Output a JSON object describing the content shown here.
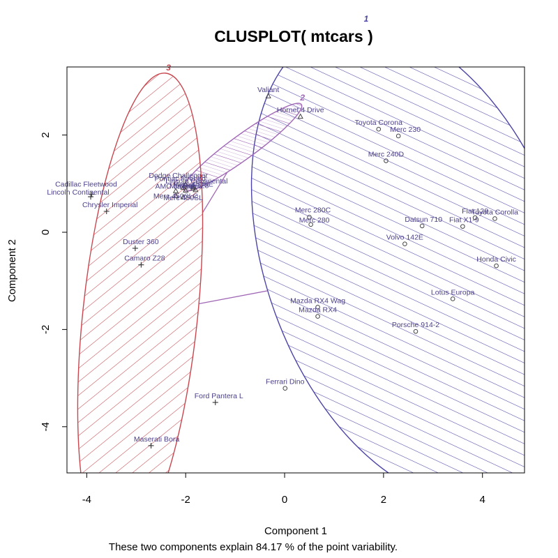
{
  "chart_data": {
    "type": "scatter",
    "title": "CLUSPLOT( mtcars )",
    "xlabel": "Component 1",
    "ylabel": "Component 2",
    "subtitle": "These two components explain 84.17 % of the point variability.",
    "xlim": [
      -4.4,
      4.85
    ],
    "ylim": [
      -4.95,
      3.4
    ],
    "xticks": [
      "-4",
      "-2",
      "0",
      "2",
      "4"
    ],
    "yticks": [
      "-4",
      "-2",
      "0",
      "2"
    ],
    "cluster_colors": {
      "1": "#4b44a6",
      "2": "#a067b6",
      "3": "#c8464e"
    },
    "clusters": [
      {
        "id": "1",
        "label": "1",
        "marker": "circle",
        "cx": 2.63,
        "cy": -0.63,
        "rx": 3.0,
        "ry": 5.1,
        "angle_deg": 20,
        "hatch_angle_deg": 45,
        "fill": false
      },
      {
        "id": "2",
        "label": "2",
        "marker": "triangle",
        "cx": -0.85,
        "cy": 1.75,
        "rx": 1.47,
        "ry": 0.25,
        "angle_deg": 36,
        "hatch_angle_deg": 36,
        "fill": true
      },
      {
        "id": "3",
        "label": "3",
        "marker": "plus",
        "cx": -2.92,
        "cy": -1.7,
        "rx": 1.16,
        "ry": 5.0,
        "angle_deg": -6,
        "hatch_angle_deg": -45,
        "fill": false
      }
    ],
    "connections": [
      {
        "from": "1",
        "to": "2"
      },
      {
        "from": "1",
        "to": "3"
      },
      {
        "from": "2",
        "to": "3"
      }
    ],
    "points": [
      {
        "label": "Valiant",
        "x": -0.33,
        "y": 2.8,
        "cluster": "2",
        "dx": 0,
        "dy": -6,
        "anchor": "middle"
      },
      {
        "label": "Hornet 4 Drive",
        "x": 0.32,
        "y": 2.38,
        "cluster": "2",
        "dx": 0,
        "dy": -6,
        "anchor": "middle"
      },
      {
        "label": "Dodge Challenger",
        "x": -2.05,
        "y": 0.92,
        "cluster": "2",
        "dx": -7,
        "dy": -14,
        "anchor": "middle"
      },
      {
        "label": "Pontiac Firebird",
        "x": -2.0,
        "y": 0.98,
        "cluster": "2",
        "dx": -8,
        "dy": -5,
        "anchor": "middle"
      },
      {
        "label": "Lincoln Continental",
        "x": -1.85,
        "y": 0.93,
        "cluster": "2",
        "dx": 5,
        "dy": -5,
        "anchor": "middle"
      },
      {
        "label": "AMC Javelin",
        "x": -2.2,
        "y": 0.85,
        "cluster": "2",
        "dx": 0,
        "dy": -3,
        "anchor": "middle"
      },
      {
        "label": "Fiat 128",
        "x": -1.8,
        "y": 0.87,
        "cluster": "2",
        "dx": 0,
        "dy": -3,
        "anchor": "middle"
      },
      {
        "label": "Merc 450SE",
        "x": -1.85,
        "y": 0.9,
        "cluster": "2",
        "dx": 0,
        "dy": -3,
        "anchor": "middle"
      },
      {
        "label": "Mercedes",
        "x": -2.0,
        "y": 0.86,
        "cluster": "2",
        "dx": 0,
        "dy": -3,
        "anchor": "middle"
      },
      {
        "label": "Merc 450SLC",
        "x": -2.2,
        "y": 0.75,
        "cluster": "2",
        "dx": 0,
        "dy": 4,
        "anchor": "middle"
      },
      {
        "label": "Merc 450SL",
        "x": -2.05,
        "y": 0.72,
        "cluster": "2",
        "dx": 0,
        "dy": 4,
        "anchor": "middle"
      },
      {
        "label": "Toyota Corona",
        "x": 1.9,
        "y": 2.12,
        "cluster": "1",
        "dx": 0,
        "dy": -6,
        "anchor": "middle"
      },
      {
        "label": "Merc 230",
        "x": 2.3,
        "y": 1.98,
        "cluster": "1",
        "dx": 10,
        "dy": -6,
        "anchor": "middle"
      },
      {
        "label": "Merc 240D",
        "x": 2.05,
        "y": 1.47,
        "cluster": "1",
        "dx": 0,
        "dy": -6,
        "anchor": "middle"
      },
      {
        "label": "Merc 280C",
        "x": 0.5,
        "y": 0.31,
        "cluster": "1",
        "dx": 5,
        "dy": -7,
        "anchor": "middle"
      },
      {
        "label": "Merc 280",
        "x": 0.53,
        "y": 0.16,
        "cluster": "1",
        "dx": 5,
        "dy": -3,
        "anchor": "middle"
      },
      {
        "label": "Datsun 710",
        "x": 2.78,
        "y": 0.13,
        "cluster": "1",
        "dx": 2,
        "dy": -6,
        "anchor": "middle"
      },
      {
        "label": "Fiat X1-9",
        "x": 3.6,
        "y": 0.12,
        "cluster": "1",
        "dx": 2,
        "dy": -6,
        "anchor": "middle"
      },
      {
        "label": "Fiat 128",
        "x": 3.85,
        "y": 0.3,
        "cluster": "1",
        "dx": 0,
        "dy": -6,
        "anchor": "middle"
      },
      {
        "label": "Toyota Corolla",
        "x": 4.25,
        "y": 0.28,
        "cluster": "1",
        "dx": 0,
        "dy": -6,
        "anchor": "middle"
      },
      {
        "label": "Volvo 142E",
        "x": 2.43,
        "y": -0.24,
        "cluster": "1",
        "dx": 0,
        "dy": -6,
        "anchor": "middle"
      },
      {
        "label": "Honda Civic",
        "x": 4.28,
        "y": -0.69,
        "cluster": "1",
        "dx": 0,
        "dy": -6,
        "anchor": "middle"
      },
      {
        "label": "Lotus Europa",
        "x": 3.4,
        "y": -1.37,
        "cluster": "1",
        "dx": 0,
        "dy": -6,
        "anchor": "middle"
      },
      {
        "label": "Mazda RX4 Wag",
        "x": 0.67,
        "y": -1.54,
        "cluster": "1",
        "dx": 0,
        "dy": -6,
        "anchor": "middle"
      },
      {
        "label": "Mazda RX4",
        "x": 0.67,
        "y": -1.73,
        "cluster": "1",
        "dx": 0,
        "dy": -6,
        "anchor": "middle"
      },
      {
        "label": "Porsche 914-2",
        "x": 2.65,
        "y": -2.04,
        "cluster": "1",
        "dx": 0,
        "dy": -6,
        "anchor": "middle"
      },
      {
        "label": "Ferrari Dino",
        "x": 0.01,
        "y": -3.21,
        "cluster": "1",
        "dx": 0,
        "dy": -6,
        "anchor": "middle"
      },
      {
        "label": "Cadillac Fleetwood",
        "x": -3.9,
        "y": 0.78,
        "cluster": "3",
        "dx": -8,
        "dy": -11,
        "anchor": "middle"
      },
      {
        "label": "Lincoln Continental",
        "x": -3.92,
        "y": 0.73,
        "cluster": "3",
        "dx": -18,
        "dy": -3,
        "anchor": "middle"
      },
      {
        "label": "Chrysler Imperial",
        "x": -3.6,
        "y": 0.43,
        "cluster": "3",
        "dx": 5,
        "dy": -6,
        "anchor": "middle"
      },
      {
        "label": "Duster 360",
        "x": -3.02,
        "y": -0.33,
        "cluster": "3",
        "dx": 8,
        "dy": -6,
        "anchor": "middle"
      },
      {
        "label": "Camaro Z28",
        "x": -2.9,
        "y": -0.67,
        "cluster": "3",
        "dx": 5,
        "dy": -6,
        "anchor": "middle"
      },
      {
        "label": "Ford Pantera L",
        "x": -1.4,
        "y": -3.5,
        "cluster": "3",
        "dx": 5,
        "dy": -6,
        "anchor": "middle"
      },
      {
        "label": "Maserati Bora",
        "x": -2.7,
        "y": -4.39,
        "cluster": "3",
        "dx": 8,
        "dy": -6,
        "anchor": "middle"
      }
    ]
  }
}
